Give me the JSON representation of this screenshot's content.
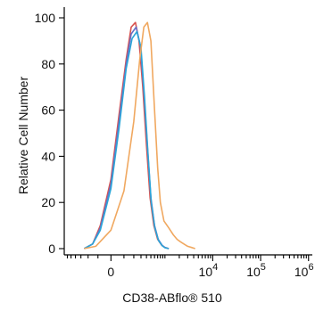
{
  "chart_data": {
    "type": "line",
    "xlabel": "CD38-ABflo® 510",
    "ylabel": "Relative Cell Number",
    "ylim": [
      0,
      100
    ],
    "yticks": [
      0,
      20,
      40,
      60,
      80,
      100
    ],
    "xscale": "biexponential",
    "xticks": [
      {
        "value": 0,
        "label": "0",
        "exp": ""
      },
      {
        "value": 10000,
        "label": "10",
        "exp": "4"
      },
      {
        "value": 100000,
        "label": "10",
        "exp": "5"
      },
      {
        "value": 1000000,
        "label": "10",
        "exp": "6"
      }
    ],
    "grid": false,
    "series": [
      {
        "color": "#d9534f",
        "x": [
          -250,
          -150,
          -80,
          0,
          60,
          120,
          170,
          220,
          270,
          330,
          400,
          480,
          580,
          700,
          850,
          1000,
          1200
        ],
        "y": [
          0,
          2,
          10,
          30,
          58,
          82,
          96,
          98,
          90,
          70,
          45,
          22,
          10,
          4,
          1.5,
          0.5,
          0
        ]
      },
      {
        "color": "#6a6fc4",
        "x": [
          -250,
          -150,
          -80,
          0,
          60,
          120,
          170,
          230,
          290,
          350,
          420,
          500,
          600,
          720,
          870,
          1000,
          1200
        ],
        "y": [
          0,
          2,
          9,
          28,
          55,
          80,
          93,
          96,
          88,
          68,
          44,
          22,
          10,
          4,
          1.5,
          0.5,
          0
        ]
      },
      {
        "color": "#2ba5d8",
        "x": [
          -250,
          -150,
          -80,
          0,
          60,
          120,
          180,
          240,
          300,
          360,
          430,
          510,
          610,
          730,
          880,
          1000,
          1200
        ],
        "y": [
          0,
          2,
          8,
          26,
          52,
          78,
          91,
          94,
          87,
          66,
          42,
          20,
          9,
          3.5,
          1.2,
          0.4,
          0
        ]
      },
      {
        "color": "#f0a860",
        "x": [
          -250,
          -120,
          0,
          100,
          200,
          280,
          350,
          420,
          500,
          600,
          700,
          800,
          950,
          1200,
          1500,
          1800,
          2100,
          2500,
          3000,
          3600,
          4300
        ],
        "y": [
          0,
          1,
          8,
          25,
          55,
          82,
          96,
          98,
          90,
          60,
          35,
          20,
          12,
          9,
          6,
          4,
          3,
          2,
          1,
          0.5,
          0
        ]
      }
    ]
  }
}
